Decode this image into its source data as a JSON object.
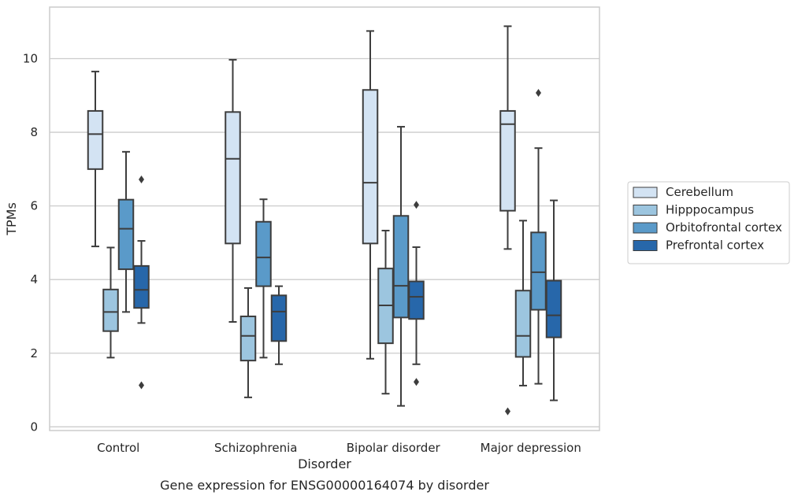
{
  "chart_data": {
    "type": "box",
    "title": "Gene expression for ENSG00000164074 by disorder",
    "xlabel": "Disorder",
    "ylabel": "TPMs",
    "ylim": [
      -0.1,
      11.4
    ],
    "yticks": [
      0,
      2,
      4,
      6,
      8,
      10
    ],
    "grid": true,
    "legend_position": "right",
    "categories": [
      "Control",
      "Schizophrenia",
      "Bipolar disorder",
      "Major depression"
    ],
    "series": [
      {
        "name": "Cerebellum",
        "color": "#d3e3f3",
        "boxes": [
          {
            "whisker_low": 4.9,
            "q1": 7.0,
            "median": 7.95,
            "q3": 8.58,
            "whisker_high": 9.65,
            "outliers": []
          },
          {
            "whisker_low": 2.85,
            "q1": 4.98,
            "median": 7.28,
            "q3": 8.55,
            "whisker_high": 9.97,
            "outliers": []
          },
          {
            "whisker_low": 1.85,
            "q1": 4.98,
            "median": 6.63,
            "q3": 9.15,
            "whisker_high": 10.75,
            "outliers": []
          },
          {
            "whisker_low": 4.83,
            "q1": 5.87,
            "median": 8.22,
            "q3": 8.58,
            "whisker_high": 10.88,
            "outliers": [
              0.42
            ]
          }
        ]
      },
      {
        "name": "Hipppocampus",
        "color": "#9cc5df",
        "boxes": [
          {
            "whisker_low": 1.88,
            "q1": 2.6,
            "median": 3.12,
            "q3": 3.73,
            "whisker_high": 4.87,
            "outliers": []
          },
          {
            "whisker_low": 0.8,
            "q1": 1.8,
            "median": 2.47,
            "q3": 3.0,
            "whisker_high": 3.77,
            "outliers": []
          },
          {
            "whisker_low": 0.9,
            "q1": 2.27,
            "median": 3.3,
            "q3": 4.3,
            "whisker_high": 5.33,
            "outliers": []
          },
          {
            "whisker_low": 1.12,
            "q1": 1.9,
            "median": 2.47,
            "q3": 3.7,
            "whisker_high": 5.6,
            "outliers": []
          }
        ]
      },
      {
        "name": "Orbitofrontal cortex",
        "color": "#5a9ac9",
        "boxes": [
          {
            "whisker_low": 3.12,
            "q1": 4.28,
            "median": 5.38,
            "q3": 6.17,
            "whisker_high": 7.47,
            "outliers": []
          },
          {
            "whisker_low": 1.88,
            "q1": 3.82,
            "median": 4.6,
            "q3": 5.57,
            "whisker_high": 6.18,
            "outliers": []
          },
          {
            "whisker_low": 0.57,
            "q1": 2.97,
            "median": 3.83,
            "q3": 5.73,
            "whisker_high": 8.15,
            "outliers": []
          },
          {
            "whisker_low": 1.17,
            "q1": 3.18,
            "median": 4.2,
            "q3": 5.28,
            "whisker_high": 7.57,
            "outliers": [
              9.07
            ]
          }
        ]
      },
      {
        "name": "Prefrontal cortex",
        "color": "#2767aa",
        "boxes": [
          {
            "whisker_low": 2.82,
            "q1": 3.23,
            "median": 3.72,
            "q3": 4.37,
            "whisker_high": 5.05,
            "outliers": [
              1.13,
              6.72
            ]
          },
          {
            "whisker_low": 1.7,
            "q1": 2.33,
            "median": 3.13,
            "q3": 3.57,
            "whisker_high": 3.82,
            "outliers": []
          },
          {
            "whisker_low": 1.7,
            "q1": 2.93,
            "median": 3.53,
            "q3": 3.95,
            "whisker_high": 4.88,
            "outliers": [
              1.22,
              6.03
            ]
          },
          {
            "whisker_low": 0.72,
            "q1": 2.43,
            "median": 3.03,
            "q3": 3.97,
            "whisker_high": 6.15,
            "outliers": []
          }
        ]
      }
    ]
  }
}
